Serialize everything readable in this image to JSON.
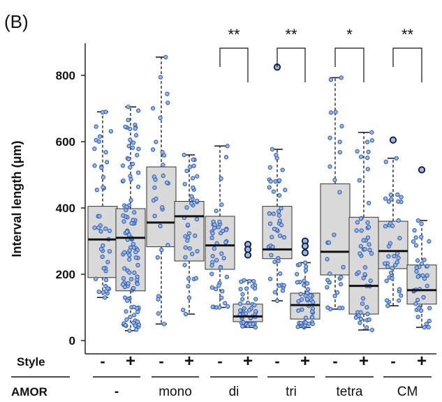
{
  "chart_data": {
    "type": "box",
    "panel_label": "(B)",
    "ylabel": "Interval length (μm)",
    "yticks": [
      0,
      200,
      400,
      600,
      800
    ],
    "ylim": [
      -40,
      880
    ],
    "style_row_label": "Style",
    "amor_row_label": "AMOR",
    "groups": [
      {
        "label": "-",
        "significance": ""
      },
      {
        "label": "mono",
        "significance": ""
      },
      {
        "label": "di",
        "significance": "**"
      },
      {
        "label": "tri",
        "significance": "**"
      },
      {
        "label": "tetra",
        "significance": "*"
      },
      {
        "label": "CM",
        "significance": "**"
      }
    ],
    "boxes": [
      {
        "group": "-",
        "style": "-",
        "min": 130,
        "q1": 190,
        "median": 305,
        "q3": 405,
        "max": 690,
        "outliers": [],
        "n_points": 45
      },
      {
        "group": "-",
        "style": "+",
        "min": 30,
        "q1": 150,
        "median": 310,
        "q3": 398,
        "max": 705,
        "outliers": [],
        "n_points": 110
      },
      {
        "group": "mono",
        "style": "-",
        "min": 50,
        "q1": 283,
        "median": 356,
        "q3": 524,
        "max": 855,
        "outliers": [],
        "n_points": 30
      },
      {
        "group": "mono",
        "style": "+",
        "min": 80,
        "q1": 240,
        "median": 375,
        "q3": 420,
        "max": 560,
        "outliers": [],
        "n_points": 40
      },
      {
        "group": "di",
        "style": "-",
        "min": 100,
        "q1": 215,
        "median": 287,
        "q3": 375,
        "max": 587,
        "outliers": [],
        "n_points": 45
      },
      {
        "group": "di",
        "style": "+",
        "min": 40,
        "q1": 57,
        "median": 73,
        "q3": 110,
        "max": 182,
        "outliers": [
          290,
          275,
          258
        ],
        "n_points": 45
      },
      {
        "group": "tri",
        "style": "-",
        "min": 120,
        "q1": 247,
        "median": 275,
        "q3": 405,
        "max": 577,
        "outliers": [
          825
        ],
        "n_points": 45
      },
      {
        "group": "tri",
        "style": "+",
        "min": 40,
        "q1": 65,
        "median": 107,
        "q3": 143,
        "max": 235,
        "outliers": [
          300,
          285,
          265
        ],
        "n_points": 45
      },
      {
        "group": "tetra",
        "style": "-",
        "min": 95,
        "q1": 198,
        "median": 268,
        "q3": 473,
        "max": 793,
        "outliers": [],
        "n_points": 30
      },
      {
        "group": "tetra",
        "style": "+",
        "min": 32,
        "q1": 80,
        "median": 165,
        "q3": 372,
        "max": 628,
        "outliers": [],
        "n_points": 55
      },
      {
        "group": "CM",
        "style": "-",
        "min": 105,
        "q1": 217,
        "median": 270,
        "q3": 360,
        "max": 550,
        "outliers": [
          605
        ],
        "n_points": 40
      },
      {
        "group": "CM",
        "style": "+",
        "min": 40,
        "q1": 110,
        "median": 152,
        "q3": 228,
        "max": 362,
        "outliers": [
          515
        ],
        "n_points": 40
      }
    ],
    "box_fill": "#d9d9d9",
    "point_color": "#2e5fb5",
    "point_fill": "#9fb6e0",
    "grid": false
  }
}
